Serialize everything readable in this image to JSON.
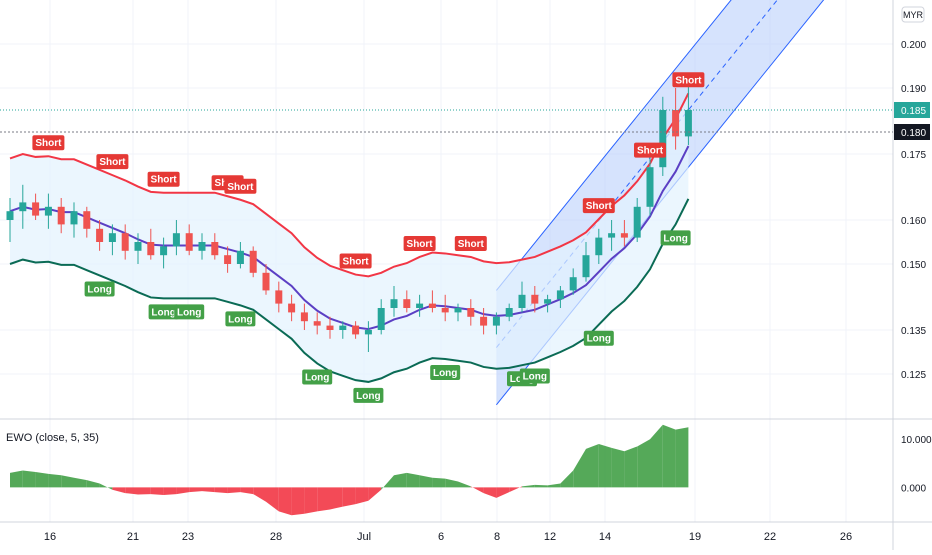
{
  "colors": {
    "bull": "#26a69a",
    "bear": "#ef5350",
    "upper_band": "#f23645",
    "mid_band": "#5b3fc4",
    "lower_band": "#0b6b55",
    "band_fill": "#e3f2fd",
    "channel": "#2962ff",
    "channel_fill": "#bbd0fb",
    "long_badge": "#43a047",
    "short_badge": "#e53935",
    "osc_pos": "#43a047",
    "osc_neg": "#f23645",
    "last_price": "#26a69a",
    "crosshair_price": "#131722",
    "grid": "#f0f3fa"
  },
  "currency": "MYR",
  "price_axis": {
    "ticks": [
      "0.200",
      "0.190",
      "0.175",
      "0.160",
      "0.150",
      "0.135",
      "0.125"
    ],
    "last_price_label": "0.185",
    "marker_label": "0.180"
  },
  "oscillator": {
    "title": "EWO (close, 5, 35)",
    "ticks": [
      "10.000",
      "0.000"
    ]
  },
  "date_axis": {
    "labels": [
      "16",
      "21",
      "23",
      "28",
      "Jul",
      "6",
      "8",
      "12",
      "14",
      "19",
      "22",
      "26"
    ]
  },
  "signals": {
    "long_label": "Long",
    "short_label": "Short"
  },
  "chart_data": {
    "type": "candlestick",
    "currency": "MYR",
    "indicator_bands": [
      "upper",
      "middle",
      "lower"
    ],
    "regression_channel": true,
    "ylim": [
      0.115,
      0.21
    ],
    "oscillator_ylim": [
      -7,
      14
    ],
    "x_ticks": [
      "16",
      "21",
      "23",
      "28",
      "Jul",
      "6",
      "8",
      "12",
      "14",
      "19",
      "22",
      "26"
    ],
    "candles": [
      [
        0.16,
        0.165,
        0.155,
        0.162
      ],
      [
        0.162,
        0.168,
        0.158,
        0.164
      ],
      [
        0.164,
        0.166,
        0.16,
        0.161
      ],
      [
        0.161,
        0.166,
        0.158,
        0.163
      ],
      [
        0.163,
        0.165,
        0.157,
        0.159
      ],
      [
        0.159,
        0.164,
        0.156,
        0.162
      ],
      [
        0.162,
        0.163,
        0.156,
        0.158
      ],
      [
        0.158,
        0.16,
        0.153,
        0.155
      ],
      [
        0.155,
        0.159,
        0.152,
        0.157
      ],
      [
        0.157,
        0.159,
        0.151,
        0.153
      ],
      [
        0.153,
        0.157,
        0.15,
        0.155
      ],
      [
        0.155,
        0.158,
        0.151,
        0.152
      ],
      [
        0.152,
        0.156,
        0.149,
        0.154
      ],
      [
        0.154,
        0.16,
        0.152,
        0.157
      ],
      [
        0.157,
        0.159,
        0.152,
        0.153
      ],
      [
        0.153,
        0.157,
        0.151,
        0.155
      ],
      [
        0.155,
        0.157,
        0.151,
        0.152
      ],
      [
        0.152,
        0.154,
        0.148,
        0.15
      ],
      [
        0.15,
        0.155,
        0.149,
        0.153
      ],
      [
        0.153,
        0.154,
        0.147,
        0.148
      ],
      [
        0.148,
        0.15,
        0.143,
        0.144
      ],
      [
        0.144,
        0.146,
        0.139,
        0.141
      ],
      [
        0.141,
        0.143,
        0.137,
        0.139
      ],
      [
        0.139,
        0.141,
        0.135,
        0.137
      ],
      [
        0.137,
        0.139,
        0.134,
        0.136
      ],
      [
        0.136,
        0.138,
        0.133,
        0.135
      ],
      [
        0.135,
        0.137,
        0.133,
        0.136
      ],
      [
        0.136,
        0.137,
        0.133,
        0.134
      ],
      [
        0.134,
        0.137,
        0.13,
        0.135
      ],
      [
        0.135,
        0.142,
        0.134,
        0.14
      ],
      [
        0.14,
        0.145,
        0.138,
        0.142
      ],
      [
        0.142,
        0.144,
        0.139,
        0.14
      ],
      [
        0.14,
        0.143,
        0.138,
        0.141
      ],
      [
        0.141,
        0.144,
        0.139,
        0.14
      ],
      [
        0.14,
        0.143,
        0.137,
        0.139
      ],
      [
        0.139,
        0.141,
        0.137,
        0.14
      ],
      [
        0.14,
        0.142,
        0.136,
        0.138
      ],
      [
        0.138,
        0.14,
        0.134,
        0.136
      ],
      [
        0.136,
        0.139,
        0.134,
        0.138
      ],
      [
        0.138,
        0.141,
        0.137,
        0.14
      ],
      [
        0.14,
        0.146,
        0.139,
        0.143
      ],
      [
        0.143,
        0.145,
        0.139,
        0.141
      ],
      [
        0.141,
        0.143,
        0.139,
        0.142
      ],
      [
        0.142,
        0.145,
        0.14,
        0.144
      ],
      [
        0.144,
        0.149,
        0.143,
        0.147
      ],
      [
        0.147,
        0.155,
        0.146,
        0.152
      ],
      [
        0.152,
        0.158,
        0.15,
        0.156
      ],
      [
        0.156,
        0.16,
        0.153,
        0.157
      ],
      [
        0.157,
        0.16,
        0.154,
        0.156
      ],
      [
        0.156,
        0.165,
        0.155,
        0.163
      ],
      [
        0.163,
        0.175,
        0.161,
        0.172
      ],
      [
        0.172,
        0.188,
        0.17,
        0.185
      ],
      [
        0.185,
        0.19,
        0.176,
        0.179
      ],
      [
        0.179,
        0.192,
        0.177,
        0.185
      ]
    ],
    "oscillator_values": [
      3,
      3.5,
      3.2,
      2.8,
      2.5,
      2.0,
      1.5,
      0.8,
      -0.5,
      -1.2,
      -1.5,
      -1.4,
      -1.6,
      -1.4,
      -1.0,
      -0.8,
      -1.0,
      -1.2,
      -1.0,
      -1.4,
      -3.0,
      -5.0,
      -5.8,
      -5.5,
      -5.0,
      -4.6,
      -4.0,
      -3.5,
      -2.8,
      -0.5,
      2.5,
      3.0,
      2.5,
      2.0,
      1.8,
      1.2,
      0.2,
      -1.2,
      -2.2,
      -1.0,
      0.2,
      0.5,
      0.4,
      0.8,
      3.5,
      8.0,
      9.0,
      8.2,
      7.5,
      8.5,
      10.0,
      13.0,
      12.0,
      12.5
    ],
    "long_signals": [
      7,
      12,
      14,
      18,
      24,
      28,
      34,
      40,
      41,
      46,
      52
    ],
    "short_signals": [
      3,
      8,
      12,
      17,
      18,
      27,
      32,
      36,
      46,
      50,
      53
    ]
  }
}
